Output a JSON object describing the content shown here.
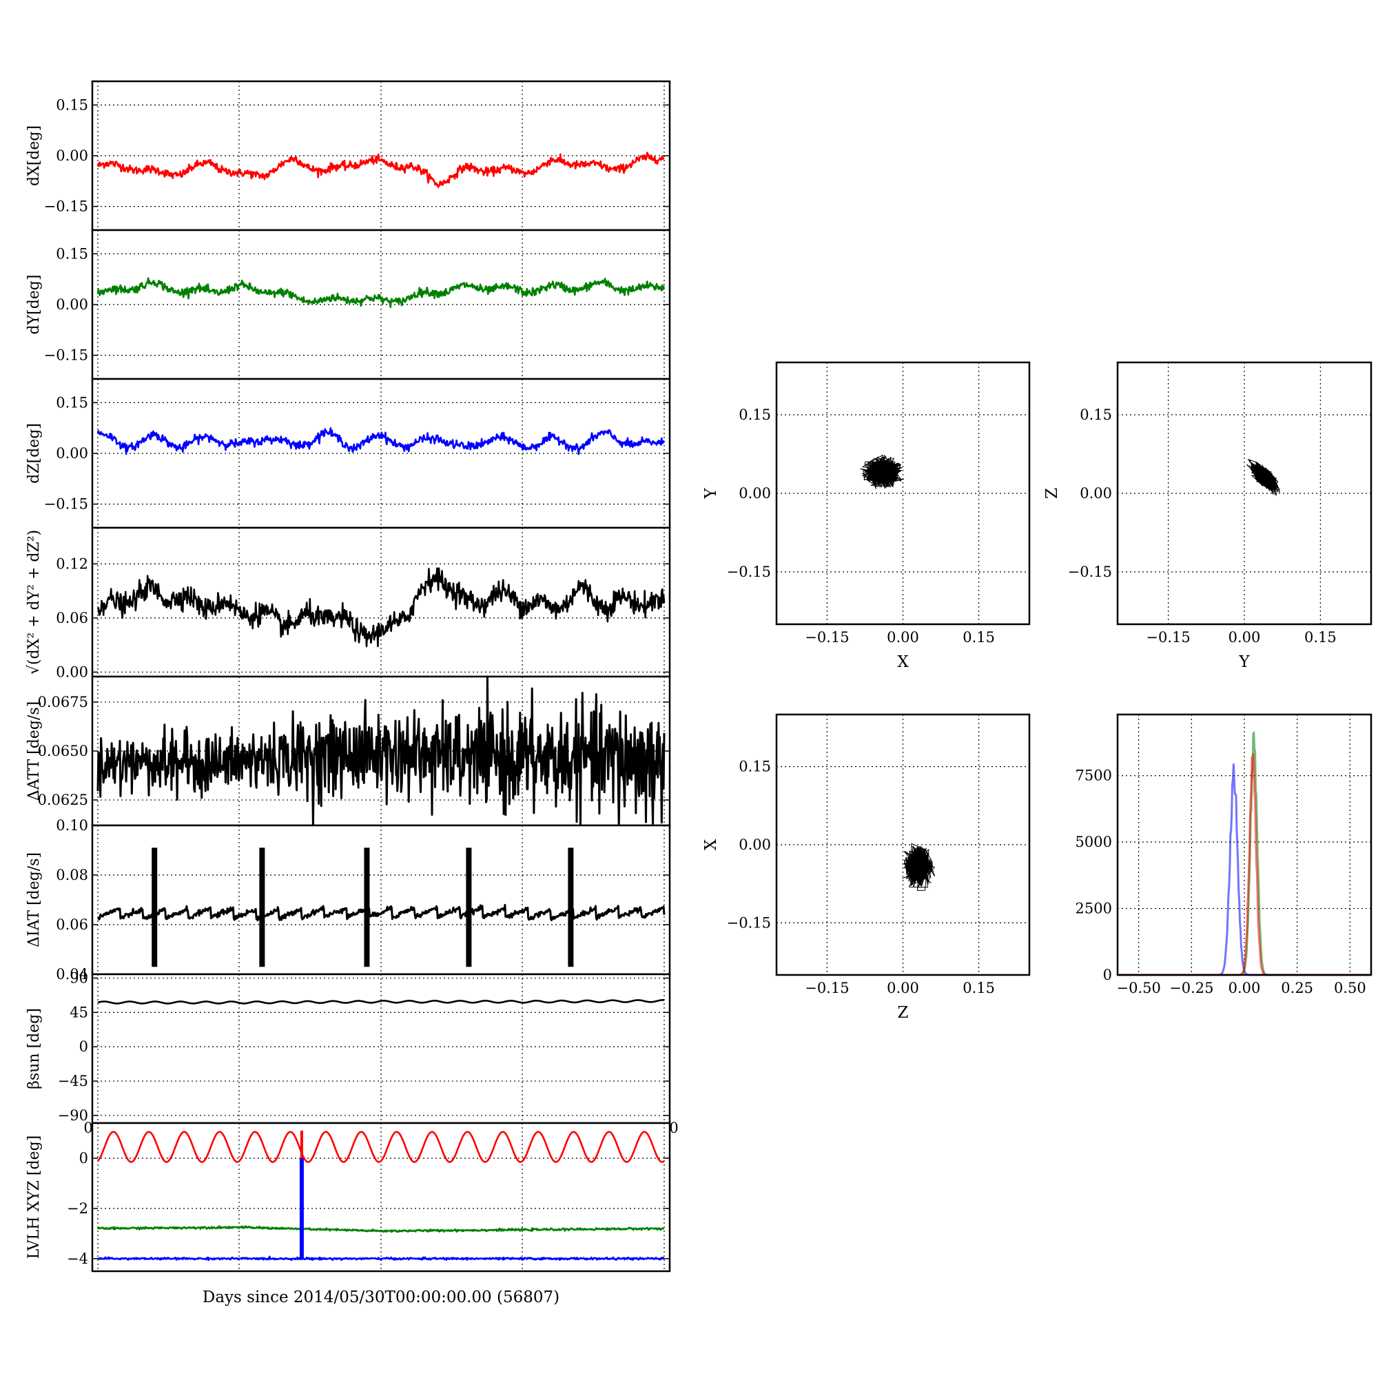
{
  "chart_data": [
    {
      "type": "line",
      "ylabel": "dX[deg]",
      "yticks": [
        "0.15",
        "0.00",
        "−0.15"
      ],
      "ytick_values": [
        0.15,
        0.0,
        -0.15
      ],
      "ylim": [
        -0.22,
        0.22
      ],
      "x": [
        0,
        0.05,
        0.1,
        0.15,
        0.2,
        0.25,
        0.3,
        0.35,
        0.4,
        0.45,
        0.5,
        0.55,
        0.6,
        0.65,
        0.7,
        0.75,
        0.8,
        0.85,
        0.9,
        0.95,
        1.0
      ],
      "series": [
        {
          "values": [
            -0.03,
            -0.03,
            -0.05,
            -0.05,
            -0.02,
            -0.06,
            -0.05,
            -0.01,
            -0.05,
            -0.02,
            -0.02,
            -0.03,
            -0.08,
            -0.04,
            -0.04,
            -0.05,
            -0.02,
            -0.02,
            -0.04,
            -0.02,
            0.0
          ]
        }
      ],
      "colors": [
        "#ff0000"
      ]
    },
    {
      "type": "line",
      "ylabel": "dY[deg]",
      "yticks": [
        "0.15",
        "0.00",
        "−0.15"
      ],
      "ytick_values": [
        0.15,
        0.0,
        -0.15
      ],
      "ylim": [
        -0.22,
        0.22
      ],
      "x": [
        0,
        0.05,
        0.1,
        0.15,
        0.2,
        0.25,
        0.3,
        0.35,
        0.4,
        0.45,
        0.5,
        0.55,
        0.6,
        0.65,
        0.7,
        0.75,
        0.8,
        0.85,
        0.9,
        0.95,
        1.0
      ],
      "series": [
        {
          "values": [
            0.03,
            0.05,
            0.06,
            0.04,
            0.04,
            0.05,
            0.04,
            0.02,
            0.01,
            0.02,
            0.01,
            0.02,
            0.04,
            0.05,
            0.05,
            0.04,
            0.05,
            0.05,
            0.06,
            0.04,
            0.06
          ]
        }
      ],
      "colors": [
        "#008000"
      ]
    },
    {
      "type": "line",
      "ylabel": "dZ[deg]",
      "yticks": [
        "0.15",
        "0.00",
        "−0.15"
      ],
      "ytick_values": [
        0.15,
        0.0,
        -0.15
      ],
      "ylim": [
        -0.22,
        0.22
      ],
      "x": [
        0,
        0.05,
        0.1,
        0.15,
        0.2,
        0.25,
        0.3,
        0.35,
        0.4,
        0.45,
        0.5,
        0.55,
        0.6,
        0.65,
        0.7,
        0.75,
        0.8,
        0.85,
        0.9,
        0.95,
        1.0
      ],
      "series": [
        {
          "values": [
            0.06,
            0.02,
            0.05,
            0.02,
            0.05,
            0.02,
            0.05,
            0.02,
            0.06,
            0.02,
            0.05,
            0.02,
            0.05,
            0.01,
            0.05,
            0.02,
            0.04,
            0.02,
            0.06,
            0.02,
            0.04
          ]
        }
      ],
      "colors": [
        "#0000ff"
      ]
    },
    {
      "type": "line",
      "ylabel": "√(dX² + dY² + dZ²)",
      "yticks": [
        "0.12",
        "0.06",
        "0.00"
      ],
      "ytick_values": [
        0.12,
        0.06,
        0.0
      ],
      "ylim": [
        -0.005,
        0.16
      ],
      "x": [
        0,
        0.05,
        0.1,
        0.15,
        0.2,
        0.25,
        0.3,
        0.35,
        0.4,
        0.45,
        0.5,
        0.55,
        0.6,
        0.65,
        0.7,
        0.75,
        0.8,
        0.85,
        0.9,
        0.95,
        1.0
      ],
      "series": [
        {
          "values": [
            0.07,
            0.08,
            0.09,
            0.08,
            0.075,
            0.07,
            0.06,
            0.055,
            0.065,
            0.05,
            0.04,
            0.07,
            0.11,
            0.075,
            0.085,
            0.08,
            0.07,
            0.09,
            0.075,
            0.08,
            0.075
          ]
        }
      ],
      "colors": [
        "#000000"
      ]
    },
    {
      "type": "line",
      "ylabel": "ΔATT [deg/s]",
      "yticks": [
        "0.0675",
        "0.0650",
        "0.0625"
      ],
      "ytick_values": [
        0.0675,
        0.065,
        0.0625
      ],
      "ylim": [
        0.0612,
        0.0688
      ],
      "x": [
        0,
        0.1,
        0.2,
        0.3,
        0.4,
        0.5,
        0.6,
        0.7,
        0.8,
        0.9,
        1.0
      ],
      "series": [
        {
          "values": [
            0.0645,
            0.0646,
            0.0645,
            0.0647,
            0.0649,
            0.065,
            0.0649,
            0.0648,
            0.0647,
            0.0647,
            0.0646
          ]
        }
      ],
      "colors": [
        "#000000"
      ]
    },
    {
      "type": "line",
      "ylabel": "ΔIAT [deg/s]",
      "yticks": [
        "0.10",
        "0.08",
        "0.06",
        "0.04"
      ],
      "ytick_values": [
        0.1,
        0.08,
        0.06,
        0.04
      ],
      "ylim": [
        0.04,
        0.1
      ],
      "x": [
        0,
        0.1,
        0.2,
        0.3,
        0.4,
        0.5,
        0.6,
        0.7,
        0.8,
        0.9,
        1.0
      ],
      "series": [
        {
          "values": [
            0.065,
            0.064,
            0.065,
            0.064,
            0.065,
            0.065,
            0.065,
            0.065,
            0.064,
            0.065,
            0.065
          ]
        }
      ],
      "spikes_x": [
        0.1,
        0.29,
        0.475,
        0.655,
        0.835
      ],
      "spike_range": [
        0.043,
        0.091
      ],
      "colors": [
        "#000000"
      ]
    },
    {
      "type": "line",
      "ylabel": "βsun [deg]",
      "yticks": [
        "90",
        "45",
        "0",
        "−45",
        "−90"
      ],
      "ytick_values": [
        90,
        45,
        0,
        -45,
        -90
      ],
      "ylim": [
        -100,
        95
      ],
      "x": [
        0,
        0.25,
        0.5,
        0.75,
        1.0
      ],
      "series": [
        {
          "values": [
            58,
            58,
            59,
            59,
            60
          ]
        }
      ],
      "colors": [
        "#000000"
      ]
    },
    {
      "type": "line",
      "ylabel": "LVLH XYZ [deg]",
      "yticks": [
        "0",
        "−2",
        "−4"
      ],
      "ytick_values": [
        0,
        -2,
        -4
      ],
      "ylim": [
        -4.5,
        1.4
      ],
      "xtick_left": "0",
      "xtick_right": "0",
      "xlabel": "Days since 2014/05/30T00:00:00.00 (56807)",
      "x": [
        0,
        0.25,
        0.5,
        0.75,
        1.0
      ],
      "series": [
        {
          "values": [
            0.5,
            0.5,
            0.5,
            0.5,
            0.5
          ]
        },
        {
          "values": [
            -2.8,
            -2.75,
            -2.9,
            -2.85,
            -2.8
          ]
        },
        {
          "values": [
            -4.0,
            -4.0,
            -4.0,
            -4.0,
            -4.0
          ]
        }
      ],
      "spike_x": 0.36,
      "colors": [
        "#ff0000",
        "#008000",
        "#0000ff"
      ]
    },
    {
      "type": "scatter",
      "xlabel": "X",
      "ylabel": "Y",
      "xticks": [
        "−0.15",
        "0.00",
        "0.15"
      ],
      "yticks": [
        "0.15",
        "0.00",
        "−0.15"
      ],
      "xlim": [
        -0.25,
        0.25
      ],
      "ylim": [
        -0.25,
        0.25
      ],
      "center": [
        -0.04,
        0.04
      ],
      "spread": [
        0.035,
        0.025
      ],
      "colors": [
        "#000000"
      ]
    },
    {
      "type": "scatter",
      "xlabel": "Y",
      "ylabel": "Z",
      "xticks": [
        "−0.15",
        "0.00",
        "0.15"
      ],
      "yticks": [
        "0.15",
        "0.00",
        "−0.15"
      ],
      "xlim": [
        -0.25,
        0.25
      ],
      "ylim": [
        -0.25,
        0.25
      ],
      "center": [
        0.04,
        0.03
      ],
      "spread": [
        0.025,
        0.025
      ],
      "correlation": -0.7,
      "colors": [
        "#000000"
      ]
    },
    {
      "type": "scatter",
      "xlabel": "Z",
      "ylabel": "X",
      "xticks": [
        "−0.15",
        "0.00",
        "0.15"
      ],
      "yticks": [
        "0.15",
        "0.00",
        "−0.15"
      ],
      "xlim": [
        -0.25,
        0.25
      ],
      "ylim": [
        -0.25,
        0.25
      ],
      "center": [
        0.03,
        -0.04
      ],
      "spread": [
        0.025,
        0.035
      ],
      "colors": [
        "#000000"
      ]
    },
    {
      "type": "line",
      "xticks": [
        "−0.50",
        "−0.25",
        "0.00",
        "0.25",
        "0.50"
      ],
      "xtick_values": [
        -0.5,
        -0.25,
        0,
        0.25,
        0.5
      ],
      "yticks": [
        "7500",
        "5000",
        "2500",
        "0"
      ],
      "ytick_values": [
        7500,
        5000,
        2500,
        0
      ],
      "xlim": [
        -0.6,
        0.6
      ],
      "ylim": [
        0,
        9800
      ],
      "series": [
        {
          "peak_x": -0.05,
          "peak": 8200,
          "width": 0.018
        },
        {
          "peak_x": 0.045,
          "peak": 9500,
          "width": 0.016
        },
        {
          "peak_x": 0.04,
          "peak": 8500,
          "width": 0.016
        }
      ],
      "colors": [
        "#0000ff",
        "#008000",
        "#ff0000"
      ]
    }
  ]
}
